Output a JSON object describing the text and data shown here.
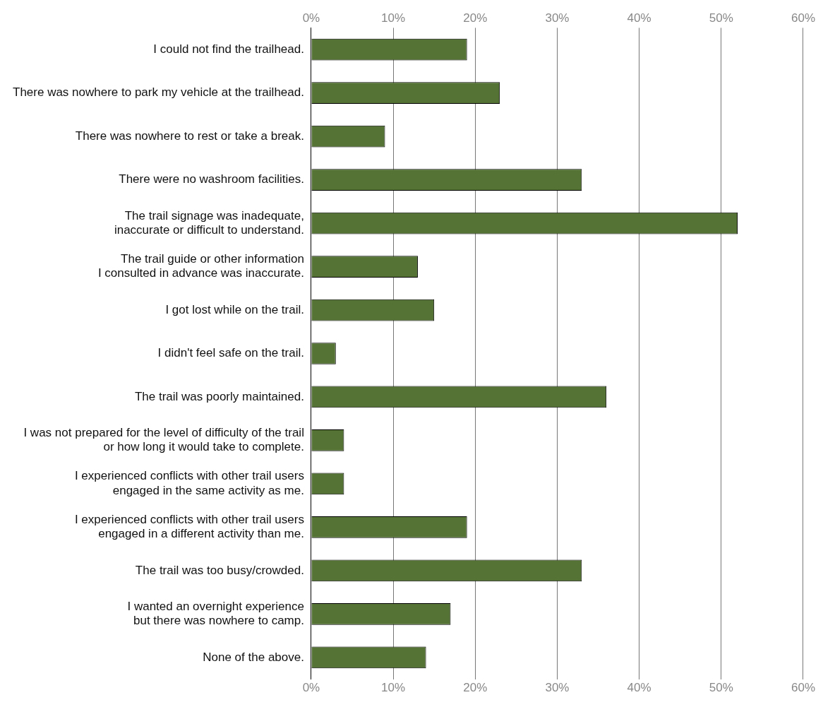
{
  "chart_data": {
    "type": "bar",
    "orientation": "horizontal",
    "categories": [
      "I could not find the trailhead.",
      "There was nowhere to park my vehicle at the trailhead.",
      "There was nowhere to rest or take a break.",
      "There were no washroom facilities.",
      "The trail signage was inadequate,\ninaccurate or difficult to understand.",
      "The trail guide or other information\nI consulted in advance was inaccurate.",
      "I got lost while on the trail.",
      "I didn't feel safe on the trail.",
      "The trail was poorly maintained.",
      "I was not prepared for the level of difficulty of the trail\nor how long it would take to complete.",
      "I experienced conflicts with other trail users\nengaged in the same activity as me.",
      "I experienced conflicts with other trail users\nengaged in a different activity than me.",
      "The trail was too busy/crowded.",
      "I wanted an overnight experience\nbut there was nowhere to camp.",
      "None of the above."
    ],
    "values": [
      19,
      23,
      9,
      33,
      52,
      13,
      15,
      3,
      36,
      4,
      4,
      19,
      33,
      17,
      14
    ],
    "color": "#557335",
    "xlim": [
      0,
      60
    ],
    "xticks": [
      {
        "value": 0,
        "label": "0%"
      },
      {
        "value": 10,
        "label": "10%"
      },
      {
        "value": 20,
        "label": "20%"
      },
      {
        "value": 30,
        "label": "30%"
      },
      {
        "value": 40,
        "label": "40%"
      },
      {
        "value": 50,
        "label": "50%"
      },
      {
        "value": 60,
        "label": "60%"
      }
    ],
    "x2lim": [
      0,
      60
    ],
    "x2ticks": [
      {
        "value": 0,
        "label": "0%"
      },
      {
        "value": 10,
        "label": "10%"
      },
      {
        "value": 20,
        "label": "20%"
      },
      {
        "value": 30,
        "label": "30%"
      },
      {
        "value": 40,
        "label": "40%"
      },
      {
        "value": 50,
        "label": "50%"
      },
      {
        "value": 60,
        "label": "60%"
      }
    ],
    "grid": "x",
    "legend": false
  }
}
